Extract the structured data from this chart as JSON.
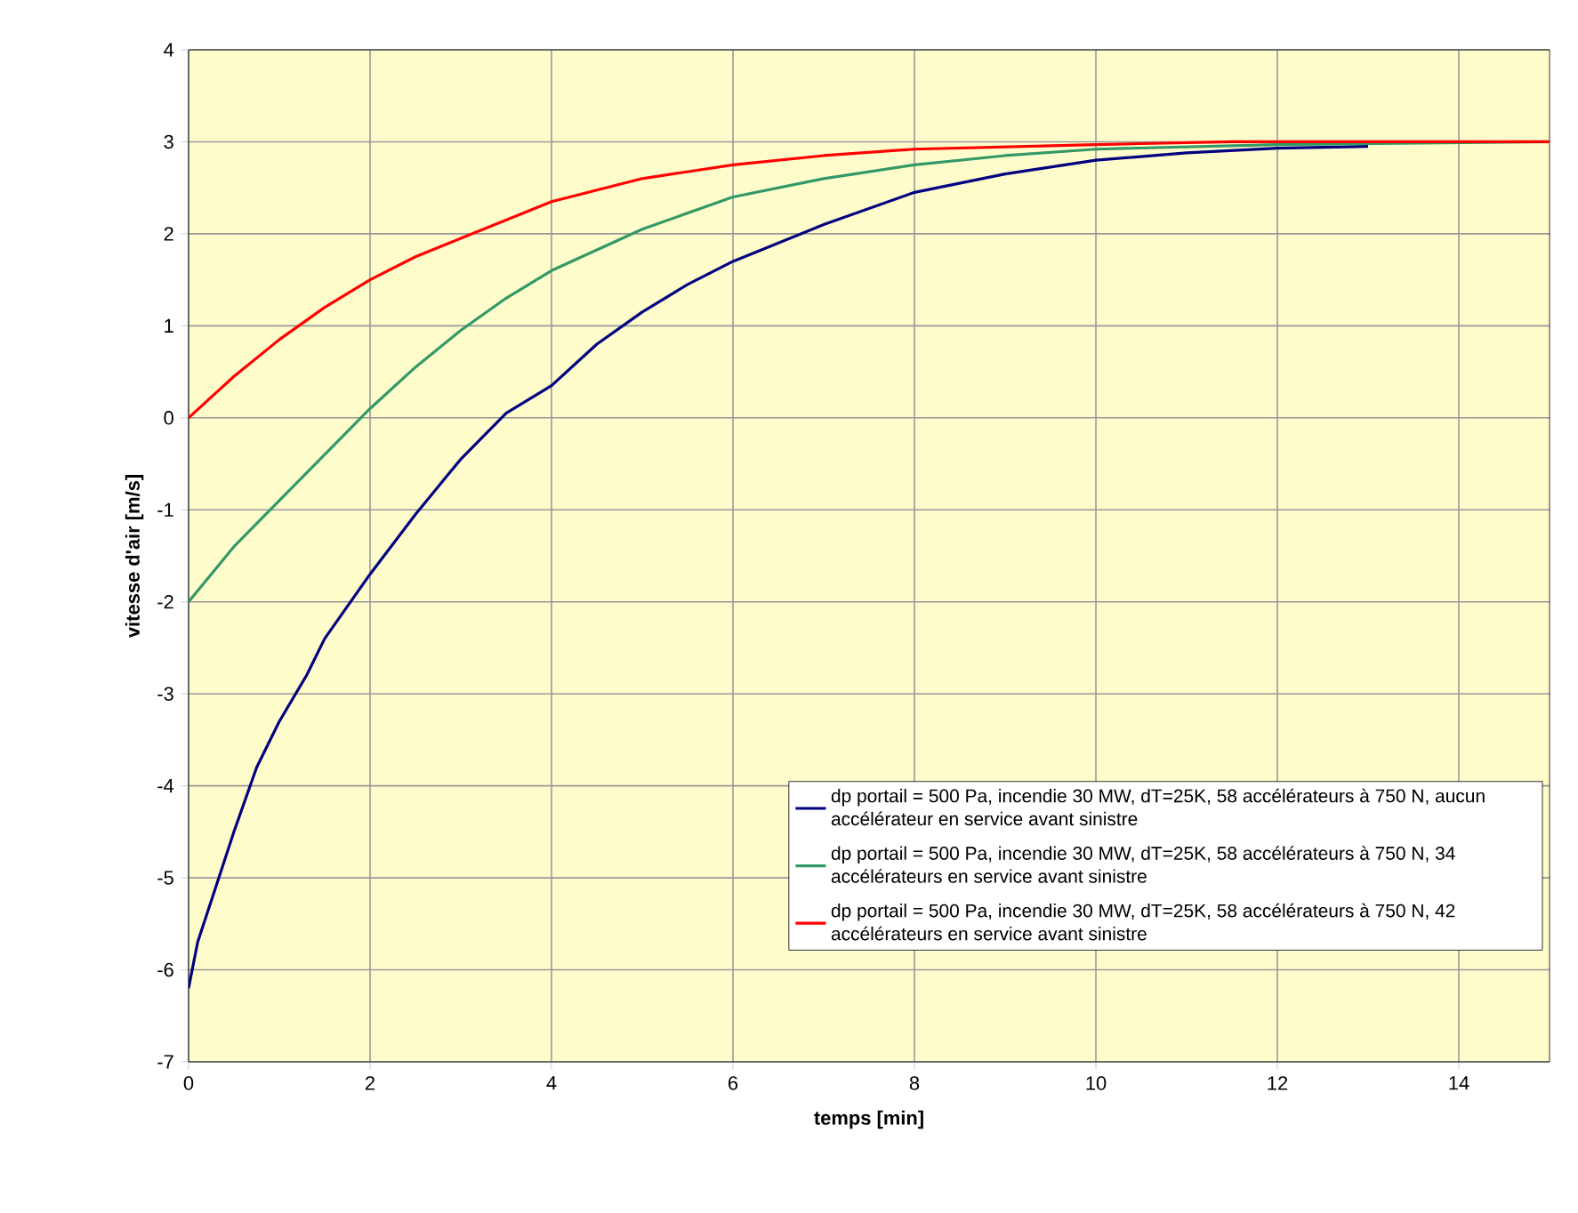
{
  "chart_data": {
    "type": "line",
    "xlabel": "temps [min]",
    "ylabel": "vitesse d'air [m/s]",
    "xlim": [
      0,
      15
    ],
    "ylim": [
      -7,
      4
    ],
    "xticks": [
      0,
      2,
      4,
      6,
      8,
      10,
      12,
      14
    ],
    "yticks": [
      -7,
      -6,
      -5,
      -4,
      -3,
      -2,
      -1,
      0,
      1,
      2,
      3,
      4
    ],
    "grid": true,
    "legend": "bottom right",
    "series": [
      {
        "name": "dp portail = 500 Pa, incendie 30 MW, dT=25K, 58 accélérateurs à 750 N, aucun accélérateur en service avant sinistre",
        "color": "#000080",
        "x": [
          0,
          0.1,
          0.3,
          0.5,
          0.75,
          1,
          1.3,
          1.5,
          2,
          2.5,
          3,
          3.5,
          4,
          4.5,
          5,
          5.5,
          6,
          7,
          8,
          9,
          10,
          11,
          12,
          13
        ],
        "values": [
          -6.2,
          -5.7,
          -5.1,
          -4.5,
          -3.8,
          -3.3,
          -2.8,
          -2.4,
          -1.7,
          -1.05,
          -0.45,
          0.05,
          0.35,
          0.8,
          1.15,
          1.45,
          1.7,
          2.1,
          2.45,
          2.65,
          2.8,
          2.88,
          2.93,
          2.95
        ]
      },
      {
        "name": "dp portail = 500 Pa, incendie 30 MW, dT=25K, 58 accélérateurs à 750 N, 34 accélérateurs en service avant sinistre",
        "color": "#339966",
        "x": [
          0,
          0.5,
          1,
          1.5,
          2,
          2.5,
          3,
          3.5,
          4,
          5,
          6,
          7,
          8,
          9,
          10,
          12,
          15
        ],
        "values": [
          -2.0,
          -1.4,
          -0.9,
          -0.4,
          0.1,
          0.55,
          0.95,
          1.3,
          1.6,
          2.05,
          2.4,
          2.6,
          2.75,
          2.85,
          2.92,
          2.97,
          3.0
        ]
      },
      {
        "name": "dp portail = 500 Pa, incendie 30 MW, dT=25K, 58 accélérateurs à 750 N, 42 accélérateurs en service avant sinistre",
        "color": "#ff0000",
        "x": [
          0,
          0.5,
          1,
          1.5,
          2,
          2.5,
          3,
          4,
          5,
          6,
          7,
          8,
          10,
          11.5,
          15
        ],
        "values": [
          0,
          0.45,
          0.85,
          1.2,
          1.5,
          1.75,
          1.95,
          2.35,
          2.6,
          2.75,
          2.85,
          2.92,
          2.97,
          3.0,
          3.0
        ]
      }
    ]
  }
}
